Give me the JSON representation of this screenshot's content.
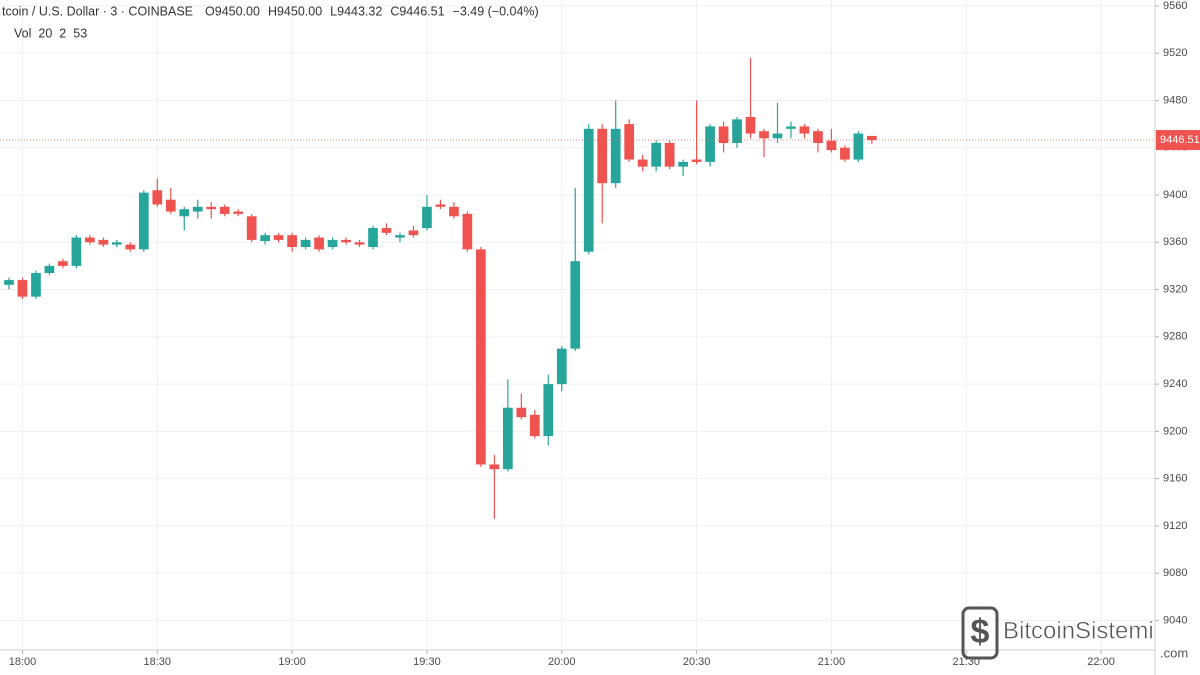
{
  "chart_data": {
    "type": "candlestick",
    "title": "tcoin / U.S. Dollar · 3 · COINBASE",
    "ohlc_header": [
      "O9450.00",
      "H9450.00",
      "L9443.32",
      "C9446.51",
      "−3.49 (−0.04%)"
    ],
    "volume_legend": [
      "Vol",
      "20",
      "2",
      "53"
    ],
    "watermark": [
      "BitcoinSistemi",
      ".com"
    ],
    "up_color": "#26a69a",
    "down_color": "#ef5350",
    "grid": true,
    "x": [
      "17:57",
      "18:00",
      "18:03",
      "18:06",
      "18:09",
      "18:12",
      "18:15",
      "18:18",
      "18:21",
      "18:24",
      "18:27",
      "18:30",
      "18:33",
      "18:36",
      "18:39",
      "18:42",
      "18:45",
      "18:48",
      "18:51",
      "18:54",
      "18:57",
      "19:00",
      "19:03",
      "19:06",
      "19:09",
      "19:12",
      "19:15",
      "19:18",
      "19:21",
      "19:24",
      "19:27",
      "19:30",
      "19:33",
      "19:36",
      "19:39",
      "19:42",
      "19:45",
      "19:48",
      "19:51",
      "19:54",
      "19:57",
      "20:00",
      "20:03",
      "20:06",
      "20:09",
      "20:12",
      "20:15",
      "20:18",
      "20:21",
      "20:24",
      "20:27",
      "20:30",
      "20:33",
      "20:36",
      "20:39",
      "20:42",
      "20:45",
      "20:48",
      "20:51",
      "20:54",
      "20:57",
      "21:00",
      "21:03",
      "21:06",
      "21:09"
    ],
    "open": [
      9324,
      9328,
      9314,
      9334,
      9344,
      9340,
      9364,
      9362,
      9358,
      9358,
      9354,
      9404,
      9396,
      9382,
      9386,
      9390,
      9390,
      9386,
      9382,
      9361,
      9366,
      9366,
      9356,
      9364,
      9356,
      9362,
      9360,
      9356,
      9372,
      9364,
      9370,
      9372,
      9392,
      9390,
      9384,
      9354,
      9172,
      9168,
      9220,
      9214,
      9196,
      9240,
      9270,
      9352,
      9456,
      9410,
      9460,
      9430,
      9424,
      9444,
      9424,
      9430,
      9428,
      9458,
      9444,
      9466,
      9454,
      9448,
      9456,
      9458,
      9454,
      9446,
      9440,
      9430,
      9450
    ],
    "high": [
      9330,
      9330,
      9336,
      9342,
      9346,
      9366,
      9366,
      9364,
      9362,
      9360,
      9404,
      9414,
      9406,
      9390,
      9396,
      9394,
      9392,
      9388,
      9384,
      9368,
      9368,
      9368,
      9364,
      9366,
      9364,
      9364,
      9362,
      9374,
      9376,
      9368,
      9374,
      9400,
      9396,
      9394,
      9386,
      9356,
      9180,
      9244,
      9232,
      9218,
      9248,
      9272,
      9406,
      9460,
      9460,
      9480,
      9464,
      9434,
      9446,
      9446,
      9430,
      9480,
      9460,
      9462,
      9466,
      9516,
      9456,
      9478,
      9462,
      9460,
      9456,
      9456,
      9442,
      9454,
      9450
    ],
    "low": [
      9320,
      9312,
      9312,
      9332,
      9338,
      9338,
      9358,
      9356,
      9356,
      9352,
      9352,
      9390,
      9384,
      9370,
      9380,
      9380,
      9382,
      9382,
      9360,
      9358,
      9360,
      9352,
      9354,
      9352,
      9354,
      9358,
      9356,
      9354,
      9366,
      9360,
      9364,
      9370,
      9388,
      9380,
      9352,
      9170,
      9126,
      9166,
      9210,
      9194,
      9188,
      9234,
      9268,
      9350,
      9376,
      9406,
      9428,
      9420,
      9420,
      9422,
      9416,
      9426,
      9424,
      9436,
      9440,
      9448,
      9432,
      9444,
      9448,
      9448,
      9436,
      9436,
      9428,
      9428,
      9443.32
    ],
    "close": [
      9328,
      9314,
      9334,
      9340,
      9340,
      9364,
      9360,
      9358,
      9360,
      9354,
      9402,
      9392,
      9386,
      9388,
      9390,
      9388,
      9384,
      9384,
      9362,
      9366,
      9362,
      9356,
      9362,
      9354,
      9362,
      9360,
      9358,
      9372,
      9368,
      9366,
      9366,
      9390,
      9390,
      9382,
      9354,
      9172,
      9168,
      9220,
      9212,
      9196,
      9240,
      9270,
      9344,
      9456,
      9410,
      9456,
      9430,
      9424,
      9444,
      9424,
      9428,
      9428,
      9458,
      9444,
      9464,
      9452,
      9448,
      9452,
      9458,
      9452,
      9444,
      9438,
      9430,
      9452,
      9446.51
    ],
    "last_price": {
      "value": 9446.51,
      "label": "9446.51"
    },
    "xlim": [
      "17:55",
      "22:12"
    ],
    "xticks": [
      "18:00",
      "18:30",
      "19:00",
      "19:30",
      "20:00",
      "20:30",
      "21:00",
      "21:30",
      "22:00"
    ],
    "ylim": [
      9015,
      9565
    ],
    "yticks": [
      9040,
      9080,
      9120,
      9160,
      9200,
      9240,
      9280,
      9320,
      9360,
      9400,
      9440,
      9480,
      9520,
      9560
    ]
  }
}
